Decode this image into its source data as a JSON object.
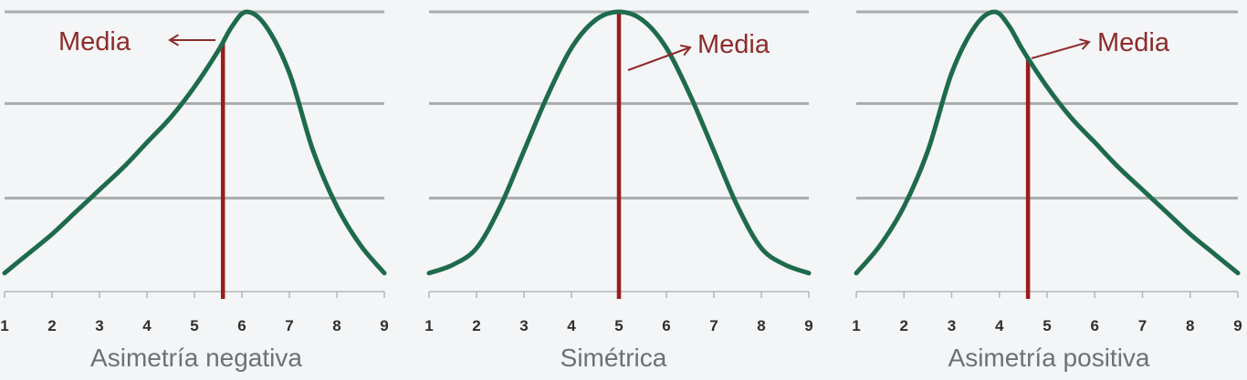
{
  "colors": {
    "background": "#f4f5f6",
    "curve": "#1e6b4c",
    "mean_line": "#9a1c1c",
    "mean_label": "#8e2b2b",
    "gridline": "#a9acae",
    "axis": "#b4b6b8",
    "tick_label": "#2f2f2f",
    "caption": "#6c7178"
  },
  "chart_data": [
    {
      "type": "line",
      "title": "Asimetría negativa",
      "x_ticks": [
        "1",
        "2",
        "3",
        "4",
        "5",
        "6",
        "7",
        "8",
        "9"
      ],
      "xlim": [
        1,
        9
      ],
      "ylim": [
        0,
        1
      ],
      "gridlines_y": [
        0.33,
        0.67,
        1.0
      ],
      "series": [
        {
          "x": [
            1,
            1.5,
            2,
            2.5,
            3,
            3.5,
            4,
            4.5,
            5,
            5.5,
            5.8,
            6.1,
            6.5,
            7,
            7.5,
            8,
            8.5,
            9
          ],
          "y": [
            0.06,
            0.13,
            0.2,
            0.28,
            0.36,
            0.44,
            0.53,
            0.62,
            0.73,
            0.86,
            0.95,
            1.0,
            0.95,
            0.78,
            0.5,
            0.3,
            0.16,
            0.06
          ]
        }
      ],
      "mean": {
        "x": 5.6,
        "label": "Media"
      }
    },
    {
      "type": "line",
      "title": "Simétrica",
      "x_ticks": [
        "1",
        "2",
        "3",
        "4",
        "5",
        "6",
        "7",
        "8",
        "9"
      ],
      "xlim": [
        1,
        9
      ],
      "ylim": [
        0,
        1
      ],
      "gridlines_y": [
        0.33,
        0.67,
        1.0
      ],
      "series": [
        {
          "x": [
            1,
            1.5,
            2,
            2.5,
            3,
            3.5,
            4,
            4.5,
            5,
            5.5,
            6,
            6.5,
            7,
            7.5,
            8,
            8.5,
            9
          ],
          "y": [
            0.06,
            0.09,
            0.15,
            0.3,
            0.5,
            0.7,
            0.87,
            0.97,
            1.0,
            0.97,
            0.87,
            0.7,
            0.5,
            0.3,
            0.15,
            0.09,
            0.06
          ]
        }
      ],
      "mean": {
        "x": 5,
        "label": "Media"
      }
    },
    {
      "type": "line",
      "title": "Asimetría positiva",
      "x_ticks": [
        "1",
        "2",
        "3",
        "4",
        "5",
        "6",
        "7",
        "8",
        "9"
      ],
      "xlim": [
        1,
        9
      ],
      "ylim": [
        0,
        1
      ],
      "gridlines_y": [
        0.33,
        0.67,
        1.0
      ],
      "series": [
        {
          "x": [
            1,
            1.5,
            2,
            2.5,
            3,
            3.5,
            3.9,
            4.2,
            4.5,
            5,
            5.5,
            6,
            6.5,
            7,
            7.5,
            8,
            8.5,
            9
          ],
          "y": [
            0.06,
            0.16,
            0.3,
            0.5,
            0.78,
            0.95,
            1.0,
            0.95,
            0.86,
            0.73,
            0.62,
            0.53,
            0.44,
            0.36,
            0.28,
            0.2,
            0.13,
            0.06
          ]
        }
      ],
      "mean": {
        "x": 4.6,
        "label": "Media"
      }
    }
  ]
}
